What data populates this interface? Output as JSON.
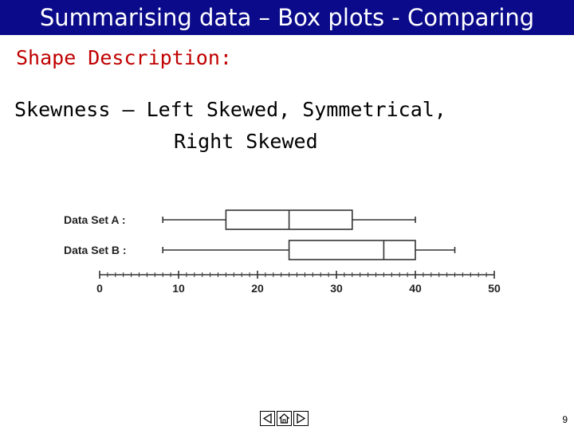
{
  "slide": {
    "title": "Summarising data – Box plots - Comparing",
    "subtitle": "Shape Description:",
    "body_line1": "Skewness – Left Skewed, Symmetrical,",
    "body_line2": "Right Skewed",
    "page_number": "9",
    "colors": {
      "title_bg": "#0a0a8a",
      "title_text": "#ffffff",
      "subtitle": "#c00000",
      "text": "#000000"
    }
  },
  "boxplot": {
    "axis": {
      "min": 0,
      "max": 50,
      "major_ticks": [
        "0",
        "10",
        "20",
        "30",
        "40",
        "50"
      ],
      "minor_step": 1
    },
    "datasets": [
      {
        "label": "Data Set A :",
        "min": 8,
        "q1": 16,
        "median": 24,
        "q3": 32,
        "max": 40
      },
      {
        "label": "Data Set B :",
        "min": 8,
        "q1": 24,
        "median": 36,
        "q3": 40,
        "max": 45
      }
    ]
  },
  "nav": {
    "prev_icon": "triangle-left-icon",
    "home_icon": "house-icon",
    "next_icon": "triangle-right-icon"
  }
}
